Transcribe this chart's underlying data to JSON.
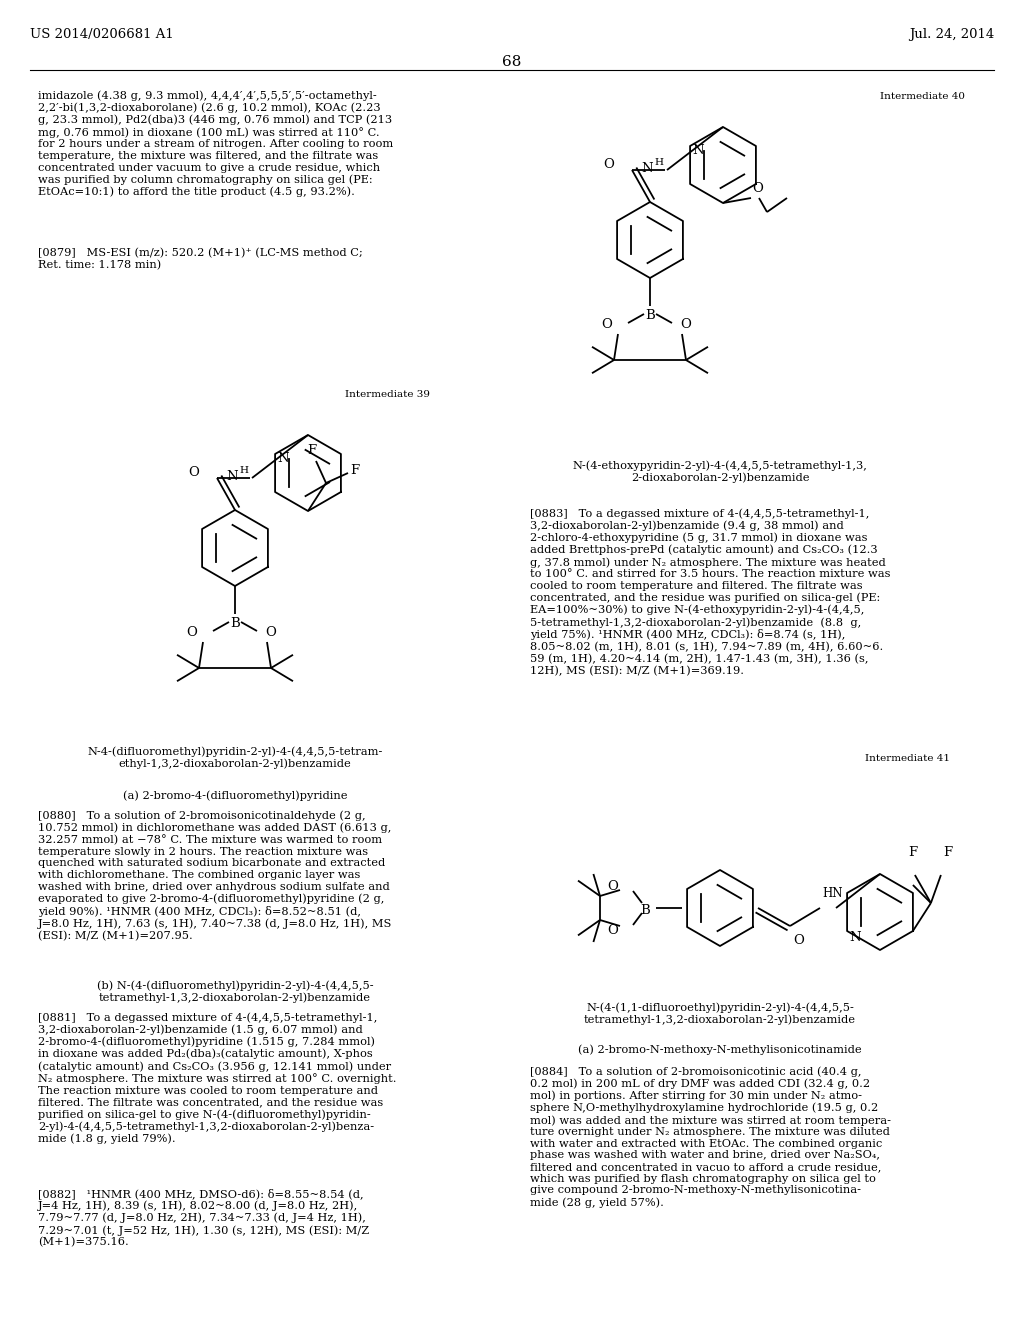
{
  "page_header_left": "US 2014/0206681 A1",
  "page_header_right": "Jul. 24, 2014",
  "page_number": "68",
  "background_color": "#ffffff",
  "text_color": "#000000",
  "paragraph_intro": "imidazole (4.38 g, 9.3 mmol), 4,4,4′,4′,5,5,5′,5′-octamethyl-\n2,2′-bi(1,3,2-dioxaborolane) (2.6 g, 10.2 mmol), KOAc (2.23\ng, 23.3 mmol), Pd2(dba)3 (446 mg, 0.76 mmol) and TCP (213\nmg, 0.76 mmol) in dioxane (100 mL) was stirred at 110° C.\nfor 2 hours under a stream of nitrogen. After cooling to room\ntemperature, the mixture was filtered, and the filtrate was\nconcentrated under vacuum to give a crude residue, which\nwas purified by column chromatography on silica gel (PE:\nEtOAc=10:1) to afford the title product (4.5 g, 93.2%).",
  "ref0879": "[0879]   MS-ESI (m/z): 520.2 (M+1)⁺ (LC-MS method C;\nRet. time: 1.178 min)",
  "int39_label": "Intermediate 39",
  "int40_label": "Intermediate 40",
  "int41_label": "Intermediate 41",
  "compound_name_39": "N-4-(difluoromethyl)pyridin-2-yl)-4-(4,4,5,5-tetram-\nethyl-1,3,2-dioxaborolan-2-yl)benzamide",
  "sub_a_39": "(a) 2-bromo-4-(difluoromethyl)pyridine",
  "ref0880": "[0880]   To a solution of 2-bromoisonicotinaldehyde (2 g,\n10.752 mmol) in dichloromethane was added DAST (6.613 g,\n32.257 mmol) at −78° C. The mixture was warmed to room\ntemperature slowly in 2 hours. The reaction mixture was\nquenched with saturated sodium bicarbonate and extracted\nwith dichloromethane. The combined organic layer was\nwashed with brine, dried over anhydrous sodium sulfate and\nevaporated to give 2-bromo-4-(difluoromethyl)pyridine (2 g,\nyield 90%). ¹HNMR (400 MHz, CDCl₃): δ=8.52~8.51 (d,\nJ=8.0 Hz, 1H), 7.63 (s, 1H), 7.40~7.38 (d, J=8.0 Hz, 1H), MS\n(ESI): M/Z (M+1)=207.95.",
  "sub_b_39": "(b) N-(4-(difluoromethyl)pyridin-2-yl)-4-(4,4,5,5-\ntetramethyl-1,3,2-dioxaborolan-2-yl)benzamide",
  "ref0881": "[0881]   To a degassed mixture of 4-(4,4,5,5-tetramethyl-1,\n3,2-dioxaborolan-2-yl)benzamide (1.5 g, 6.07 mmol) and\n2-bromo-4-(difluoromethyl)pyridine (1.515 g, 7.284 mmol)\nin dioxane was added Pd₂(dba)₃(catalytic amount), X-phos\n(catalytic amount) and Cs₂CO₃ (3.956 g, 12.141 mmol) under\nN₂ atmosphere. The mixture was stirred at 100° C. overnight.\nThe reaction mixture was cooled to room temperature and\nfiltered. The filtrate was concentrated, and the residue was\npurified on silica-gel to give N-(4-(difluoromethyl)pyridin-\n2-yl)-4-(4,4,5,5-tetramethyl-1,3,2-dioxaborolan-2-yl)benza-\nmide (1.8 g, yield 79%).",
  "ref0882": "[0882]   ¹HNMR (400 MHz, DMSO-d6): δ=8.55~8.54 (d,\nJ=4 Hz, 1H), 8.39 (s, 1H), 8.02~8.00 (d, J=8.0 Hz, 2H),\n7.79~7.77 (d, J=8.0 Hz, 2H), 7.34~7.33 (d, J=4 Hz, 1H),\n7.29~7.01 (t, J=52 Hz, 1H), 1.30 (s, 12H), MS (ESI): M/Z\n(M+1)=375.16.",
  "compound_name_40": "N-(4-ethoxypyridin-2-yl)-4-(4,4,5,5-tetramethyl-1,3,\n2-dioxaborolan-2-yl)benzamide",
  "ref0883": "[0883]   To a degassed mixture of 4-(4,4,5,5-tetramethyl-1,\n3,2-dioxaborolan-2-yl)benzamide (9.4 g, 38 mmol) and\n2-chloro-4-ethoxypyridine (5 g, 31.7 mmol) in dioxane was\nadded Brettphos-prePd (catalytic amount) and Cs₂CO₃ (12.3\ng, 37.8 mmol) under N₂ atmosphere. The mixture was heated\nto 100° C. and stirred for 3.5 hours. The reaction mixture was\ncooled to room temperature and filtered. The filtrate was\nconcentrated, and the residue was purified on silica-gel (PE:\nEA=100%~30%) to give N-(4-ethoxypyridin-2-yl)-4-(4,4,5,\n5-tetramethyl-1,3,2-dioxaborolan-2-yl)benzamide  (8.8  g,\nyield 75%). ¹HNMR (400 MHz, CDCl₃): δ=8.74 (s, 1H),\n8.05~8.02 (m, 1H), 8.01 (s, 1H), 7.94~7.89 (m, 4H), 6.60~6.\n59 (m, 1H), 4.20~4.14 (m, 2H), 1.47-1.43 (m, 3H), 1.36 (s,\n12H), MS (ESI): M/Z (M+1)=369.19.",
  "compound_name_41": "N-(4-(1,1-difluoroethyl)pyridin-2-yl)-4-(4,4,5,5-\ntetramethyl-1,3,2-dioxaborolan-2-yl)benzamide",
  "sub_a_41": "(a) 2-bromo-N-methoxy-N-methylisonicotinamide",
  "ref0884": "[0884]   To a solution of 2-bromoisonicotinic acid (40.4 g,\n0.2 mol) in 200 mL of dry DMF was added CDI (32.4 g, 0.2\nmol) in portions. After stirring for 30 min under N₂ atmo-\nsphere N,O-methylhydroxylamine hydrochloride (19.5 g, 0.2\nmol) was added and the mixture was stirred at room tempera-\nture overnight under N₂ atmosphere. The mixture was diluted\nwith water and extracted with EtOAc. The combined organic\nphase was washed with water and brine, dried over Na₂SO₄,\nfiltered and concentrated in vacuo to afford a crude residue,\nwhich was purified by flash chromatography on silica gel to\ngive compound 2-bromo-N-methoxy-N-methylisonicotina-\nmide (28 g, yield 57%)."
}
